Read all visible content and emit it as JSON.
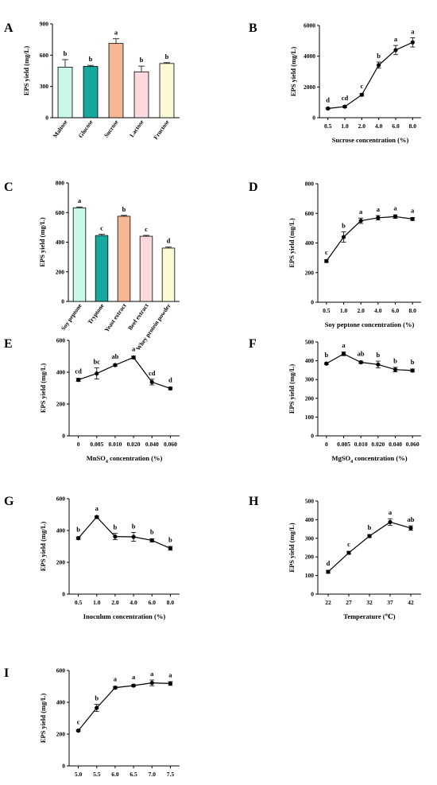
{
  "chart_data": [
    {
      "panel": "A",
      "type": "bar",
      "categories": [
        "Maltose",
        "Glucose",
        "Sucrose",
        "Lactose",
        "Fructose"
      ],
      "values": [
        485,
        492,
        712,
        440,
        520
      ],
      "errors": [
        72,
        10,
        45,
        55,
        8
      ],
      "sig_letters": [
        "b",
        "b",
        "a",
        "b",
        "b"
      ],
      "colors": [
        "#c9f7e9",
        "#18a79c",
        "#f6b795",
        "#fbd9dc",
        "#fcfad5"
      ],
      "xlabel": "",
      "ylabel": "EPS yield (mg/L)",
      "ylim": [
        0,
        900
      ],
      "yticks": [
        0,
        300,
        600,
        900
      ],
      "tick_labels": [
        "0",
        "300",
        "600",
        "900"
      ]
    },
    {
      "panel": "B",
      "type": "line",
      "categories": [
        "0.5",
        "1.0",
        "2.0",
        "4.0",
        "6.0",
        "8.0"
      ],
      "values": [
        600,
        720,
        1490,
        3420,
        4400,
        4900
      ],
      "errors": [
        40,
        60,
        80,
        200,
        300,
        300
      ],
      "sig_letters": [
        "d",
        "cd",
        "c",
        "b",
        "a",
        "a"
      ],
      "xlabel": "Sucrose concentration (%)",
      "ylabel": "EPS yield (mg/L)",
      "ylim": [
        0,
        6000
      ],
      "yticks": [
        0,
        2000,
        4000,
        6000
      ],
      "tick_labels": [
        "0",
        "2000",
        "4000",
        "6000"
      ]
    },
    {
      "panel": "C",
      "type": "bar",
      "categories": [
        "Soy peptone",
        "Tryptone",
        "Yeast extract",
        "Beef extract",
        "Whey protein powder"
      ],
      "values": [
        632,
        445,
        575,
        440,
        360
      ],
      "errors": [
        6,
        8,
        6,
        6,
        7
      ],
      "sig_letters": [
        "a",
        "c",
        "b",
        "c",
        "d"
      ],
      "colors": [
        "#c9f7e9",
        "#18a79c",
        "#f6b795",
        "#fbd9dc",
        "#fcfad5"
      ],
      "xlabel": "",
      "ylabel": "EPS yield (mg/L)",
      "ylim": [
        0,
        800
      ],
      "yticks": [
        0,
        200,
        400,
        600,
        800
      ],
      "tick_labels": [
        "0",
        "200",
        "400",
        "600",
        "800"
      ]
    },
    {
      "panel": "D",
      "type": "line",
      "categories": [
        "0.5",
        "1.0",
        "2.0",
        "4.0",
        "6.0",
        "8.0"
      ],
      "values": [
        278,
        440,
        550,
        570,
        578,
        562
      ],
      "errors": [
        10,
        35,
        18,
        15,
        12,
        10
      ],
      "sig_letters": [
        "c",
        "b",
        "a",
        "a",
        "a",
        "a"
      ],
      "xlabel": "Soy peptone concentration (%)",
      "ylabel": "EPS yield (mg/L)",
      "ylim": [
        0,
        800
      ],
      "yticks": [
        0,
        200,
        400,
        600,
        800
      ],
      "tick_labels": [
        "0",
        "200",
        "400",
        "600",
        "800"
      ]
    },
    {
      "panel": "E",
      "type": "line",
      "categories": [
        "0",
        "0.005",
        "0.010",
        "0.020",
        "0.040",
        "0.060"
      ],
      "values": [
        352,
        392,
        445,
        493,
        338,
        298
      ],
      "errors": [
        10,
        35,
        6,
        8,
        18,
        8
      ],
      "sig_letters": [
        "cd",
        "bc",
        "ab",
        "a",
        "cd",
        "d"
      ],
      "xlabel": "MnSO4 concentration (%)",
      "xlabel_main": "MnSO",
      "xlabel_sub": "4",
      "xlabel_tail": " concentration (%)",
      "ylabel": "EPS yield (mg/L)",
      "ylim": [
        0,
        600
      ],
      "yticks": [
        0,
        200,
        400,
        600
      ],
      "tick_labels": [
        "0",
        "200",
        "400",
        "600"
      ]
    },
    {
      "panel": "F",
      "type": "line",
      "categories": [
        "0",
        "0.005",
        "0.010",
        "0.020",
        "0.040",
        "0.060"
      ],
      "values": [
        385,
        437,
        392,
        380,
        353,
        348
      ],
      "errors": [
        5,
        10,
        6,
        18,
        12,
        8
      ],
      "sig_letters": [
        "b",
        "a",
        "ab",
        "b",
        "b",
        "b"
      ],
      "xlabel": "MgSO4 concentration (%)",
      "xlabel_main": "MgSO",
      "xlabel_sub": "4",
      "xlabel_tail": " concentration (%)",
      "ylabel": "EPS yield (mg/L)",
      "ylim": [
        0,
        500
      ],
      "yticks": [
        0,
        100,
        200,
        300,
        400,
        500
      ],
      "tick_labels": [
        "0",
        "100",
        "200",
        "300",
        "400",
        "500"
      ]
    },
    {
      "panel": "G",
      "type": "line",
      "categories": [
        "0.5",
        "1.0",
        "2.0",
        "4.0",
        "6.0",
        "8.0"
      ],
      "values": [
        352,
        485,
        362,
        360,
        338,
        288
      ],
      "errors": [
        8,
        6,
        20,
        28,
        10,
        12
      ],
      "sig_letters": [
        "b",
        "a",
        "b",
        "b",
        "b",
        "b"
      ],
      "xlabel": "Inoculum concentration (%)",
      "ylabel": "EPS yield (mg/L)",
      "ylim": [
        0,
        600
      ],
      "yticks": [
        0,
        200,
        400,
        600
      ],
      "tick_labels": [
        "0",
        "200",
        "400",
        "600"
      ]
    },
    {
      "panel": "H",
      "type": "line",
      "categories": [
        "22",
        "27",
        "32",
        "37",
        "42"
      ],
      "values": [
        120,
        222,
        312,
        387,
        355
      ],
      "errors": [
        8,
        8,
        8,
        18,
        12
      ],
      "sig_letters": [
        "d",
        "c",
        "b",
        "a",
        "ab"
      ],
      "xlabel": "Temperature (℃)",
      "ylabel": "EPS yield (mg/L)",
      "ylim": [
        0,
        500
      ],
      "yticks": [
        0,
        100,
        200,
        300,
        400,
        500
      ],
      "tick_labels": [
        "0",
        "100",
        "200",
        "300",
        "400",
        "500"
      ]
    },
    {
      "panel": "I",
      "type": "line",
      "categories": [
        "5.0",
        "5.5",
        "6.0",
        "6.5",
        "7.0",
        "7.5"
      ],
      "values": [
        222,
        365,
        492,
        505,
        522,
        518
      ],
      "errors": [
        6,
        22,
        8,
        6,
        18,
        12
      ],
      "sig_letters": [
        "c",
        "b",
        "a",
        "a",
        "a",
        "a"
      ],
      "xlabel": "pH",
      "ylabel": "EPS yield (mg/L)",
      "ylim": [
        0,
        600
      ],
      "yticks": [
        0,
        200,
        400,
        600
      ],
      "tick_labels": [
        "0",
        "200",
        "400",
        "600"
      ]
    }
  ],
  "colors": {
    "line": "#000000",
    "axis": "#000000"
  }
}
